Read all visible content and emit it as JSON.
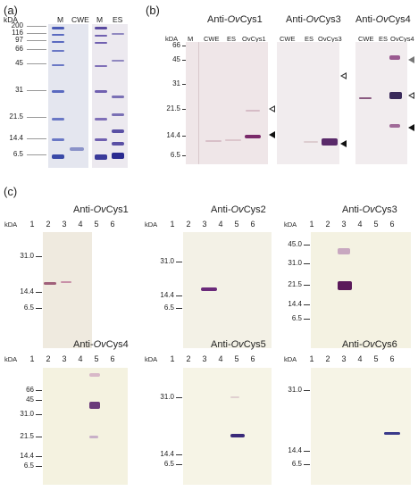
{
  "panel_a": {
    "label": "(a)",
    "kda_label": "kDA",
    "mw_markers": [
      "200",
      "116",
      "97",
      "66",
      "45",
      "31",
      "21.5",
      "14.4",
      "6.5"
    ],
    "lanes_left": [
      "M",
      "CWE"
    ],
    "lanes_right": [
      "M",
      "ES"
    ]
  },
  "panel_b": {
    "label": "(b)",
    "kda_label": "kDA",
    "mw_markers": [
      "66",
      "45",
      "31",
      "21.5",
      "14.4",
      "6.5"
    ],
    "blot1": {
      "title_prefix": "Anti-",
      "title_italic": "Ov",
      "title_suffix": "Cys1",
      "lanes": [
        "M",
        "CWE",
        "ES",
        "OvCys1"
      ]
    },
    "blot2": {
      "title_prefix": "Anti-",
      "title_italic": "Ov",
      "title_suffix": "Cys3",
      "lanes": [
        "CWE",
        "ES",
        "OvCys3"
      ]
    },
    "blot3": {
      "title_prefix": "Anti-",
      "title_italic": "Ov",
      "title_suffix": "Cys4",
      "lanes": [
        "CWE",
        "ES",
        "OvCys4"
      ]
    }
  },
  "panel_c": {
    "label": "(c)",
    "kda_label": "kDA",
    "lane_numbers": [
      "1",
      "2",
      "3",
      "4",
      "5",
      "6"
    ],
    "blots": [
      {
        "title_prefix": "Anti-",
        "title_italic": "Ov",
        "title_suffix": "Cys1",
        "mw": [
          "31.0",
          "14.4",
          "6.5"
        ]
      },
      {
        "title_prefix": "Anti-",
        "title_italic": "Ov",
        "title_suffix": "Cys2",
        "mw": [
          "31.0",
          "14.4",
          "6.5"
        ]
      },
      {
        "title_prefix": "Anti-",
        "title_italic": "Ov",
        "title_suffix": "Cys3",
        "mw": [
          "45.0",
          "31.0",
          "21.5",
          "14.4",
          "6.5"
        ]
      },
      {
        "title_prefix": "Anti-",
        "title_italic": "Ov",
        "title_suffix": "Cys4",
        "mw": [
          "66",
          "45",
          "31.0",
          "21.5",
          "14.4",
          "6.5"
        ]
      },
      {
        "title_prefix": "Anti-",
        "title_italic": "Ov",
        "title_suffix": "Cys5",
        "mw": [
          "31.0",
          "14.4",
          "6.5"
        ]
      },
      {
        "title_prefix": "Anti-",
        "title_italic": "Ov",
        "title_suffix": "Cys6",
        "mw": [
          "31.0",
          "14.4",
          "6.5"
        ]
      }
    ]
  },
  "colors": {
    "gel_bg": "#dfe3ee",
    "gel_band": "#3a4aa8",
    "membrane_pink": "#f1e8ea",
    "membrane_cream": "#f4f2e1",
    "band_purple": "#5a2a7a"
  }
}
